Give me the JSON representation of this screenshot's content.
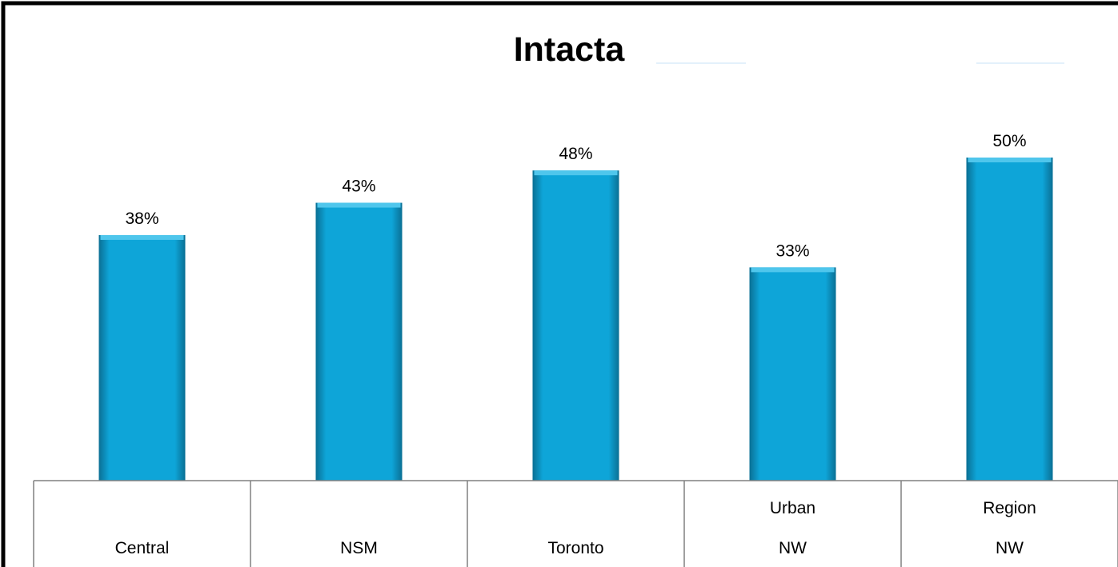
{
  "chart_data": {
    "type": "bar",
    "title": "Intacta",
    "categories": [
      [
        "",
        "Central"
      ],
      [
        "",
        "NSM"
      ],
      [
        "",
        "Toronto"
      ],
      [
        "Urban",
        "NW"
      ],
      [
        "Region",
        "NW"
      ]
    ],
    "values": [
      38,
      43,
      48,
      33,
      50
    ],
    "data_labels": [
      "38%",
      "43%",
      "48%",
      "33%",
      "50%"
    ],
    "value_unit": "%",
    "xlabel": "",
    "ylabel": "",
    "ylim": [
      0,
      60
    ],
    "grid": false,
    "legend": "none",
    "bar_color": "#0ea5d8",
    "bar_highlight_color": "#4fc6ec",
    "bar_shadow_color": "#0a6f94"
  }
}
